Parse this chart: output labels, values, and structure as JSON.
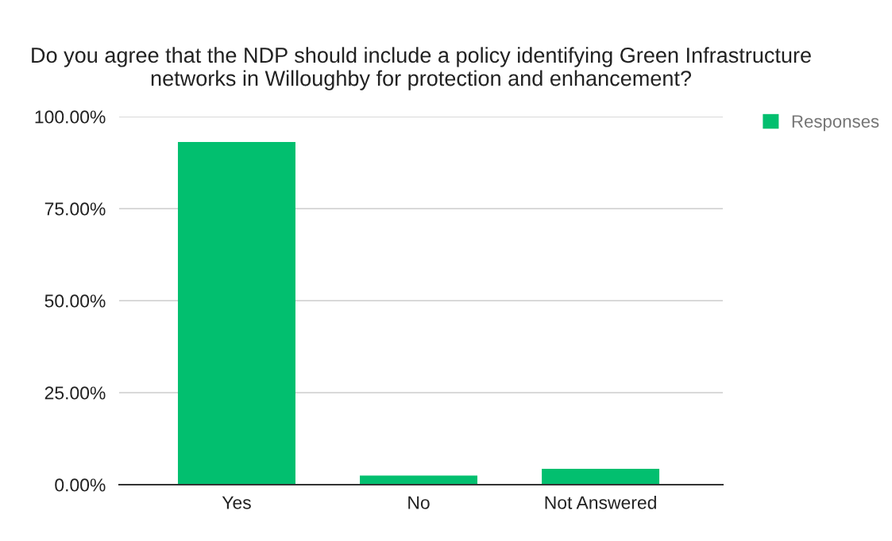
{
  "chart_data": {
    "type": "bar",
    "title": "Do you agree that the NDP should include a policy identifying Green Infrastructure\nnetworks in Willoughby for protection and enhancement?",
    "categories": [
      "Yes",
      "No",
      "Not Answered"
    ],
    "series": [
      {
        "name": "Responses",
        "color": "#02bf6f",
        "values": [
          93.1,
          2.5,
          4.3
        ]
      }
    ],
    "ylim": [
      0,
      100
    ],
    "yticks": [
      {
        "value": 0,
        "label": "0.00%"
      },
      {
        "value": 25,
        "label": "25.00%"
      },
      {
        "value": 50,
        "label": "50.00%"
      },
      {
        "value": 75,
        "label": "75.00%"
      },
      {
        "value": 100,
        "label": "100.00%"
      }
    ],
    "grid": "y",
    "legend": "right"
  }
}
